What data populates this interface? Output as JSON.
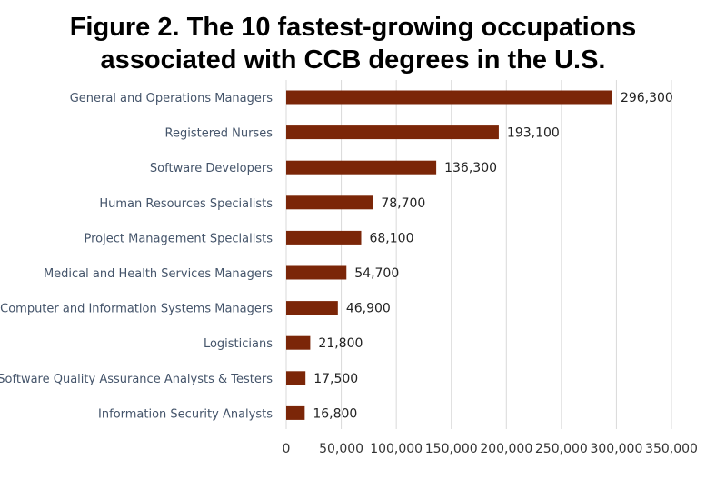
{
  "chart_data": {
    "type": "bar",
    "orientation": "horizontal",
    "title_lines": [
      "Figure 2. The 10 fastest-growing occupations",
      "associated with CCB degrees in the U.S."
    ],
    "categories": [
      "General and Operations Managers",
      "Registered Nurses",
      "Software Developers",
      "Human Resources Specialists",
      "Project Management Specialists",
      "Medical and Health Services Managers",
      "Computer and Information Systems Managers",
      "Logisticians",
      "Software Quality Assurance Analysts & Testers",
      "Information Security Analysts"
    ],
    "values": [
      296300,
      193100,
      136300,
      78700,
      68100,
      54700,
      46900,
      21800,
      17500,
      16800
    ],
    "value_labels": [
      "296,300",
      "193,100",
      "136,300",
      "78,700",
      "68,100",
      "54,700",
      "46,900",
      "21,800",
      "17,500",
      "16,800"
    ],
    "xlim": [
      0,
      350000
    ],
    "xticks": [
      0,
      50000,
      100000,
      150000,
      200000,
      250000,
      300000,
      350000
    ],
    "xtick_labels": [
      "0",
      "50,000",
      "100,000",
      "150,000",
      "200,000",
      "250,000",
      "300,000",
      "350,000"
    ],
    "grid": true,
    "bar_color": "#7b2608",
    "grid_color": "#d9d9d9"
  }
}
